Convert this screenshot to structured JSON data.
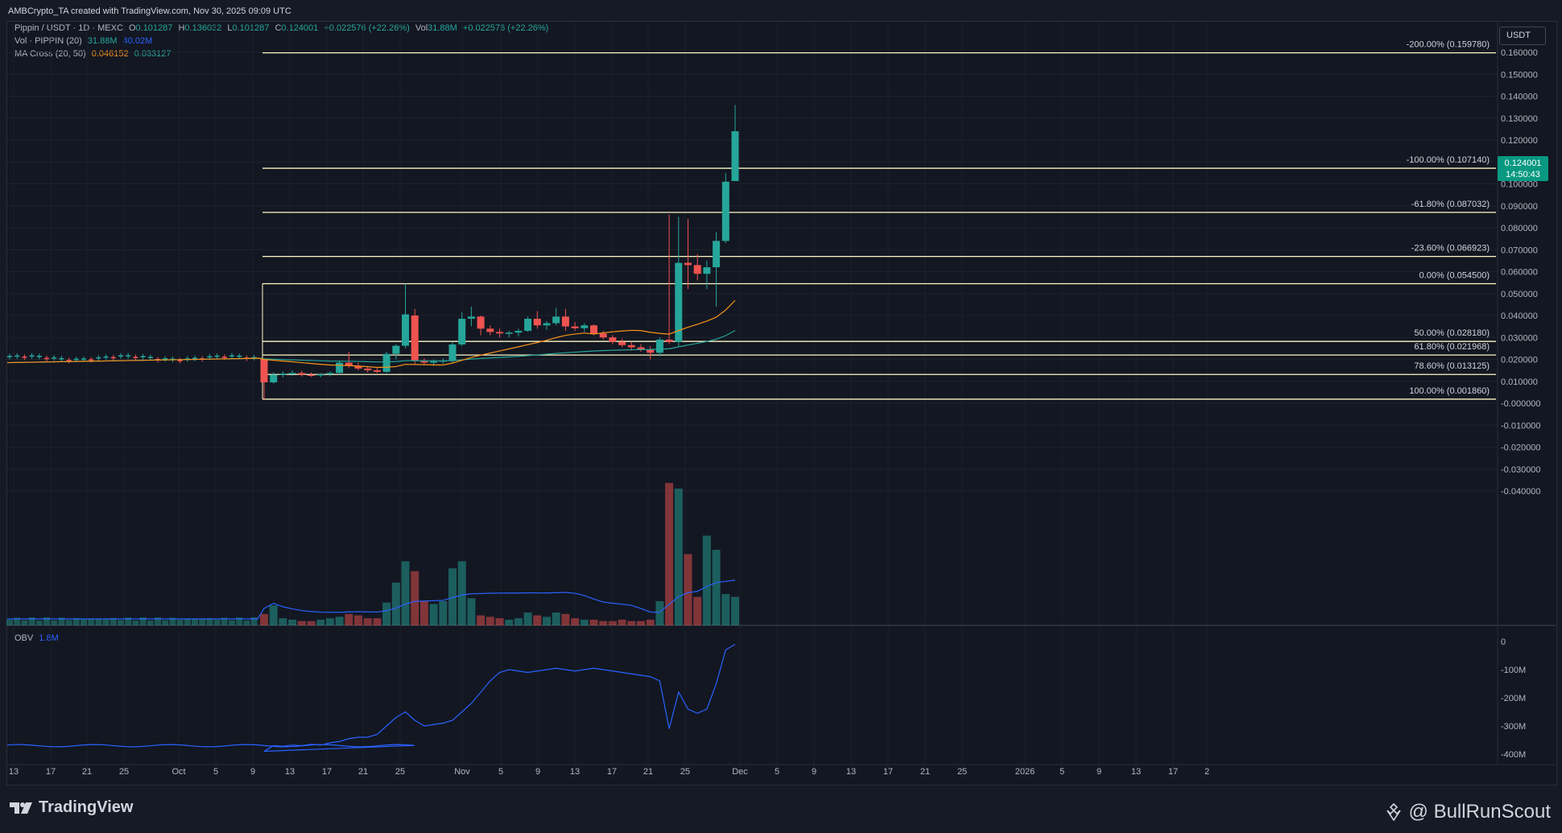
{
  "header": {
    "credit": "AMBCrypto_TA created with TradingView.com, Nov 30, 2025 09:09 UTC"
  },
  "legend": {
    "symbol": "Pippin / USDT · 1D · MEXC",
    "o_label": "O",
    "o": "0.101287",
    "h_label": "H",
    "h": "0.136032",
    "l_label": "L",
    "l": "0.101287",
    "c_label": "C",
    "c": "0.124001",
    "change": "+0.022576 (+22.26%)",
    "vol_label": "Vol",
    "vol": "31.88M",
    "vol_indicator": "Vol · PIPPIN (20)",
    "vol_value": "31.88M",
    "vol_ma": "40.02M",
    "ma_indicator": "MA Cross (20, 50)",
    "ma20": "0.046152",
    "ma50": "0.033127",
    "obv_label": "OBV",
    "obv_value": "1.8M"
  },
  "price_axis": {
    "currency": "USDT",
    "last_price": "0.124001",
    "countdown": "14:50:43"
  },
  "colors": {
    "bull": "#26a69a",
    "bear": "#ef5350",
    "ma20": "#f7931a",
    "ma50": "#26a69a",
    "obv": "#2962ff",
    "fib": "#fff9c4",
    "bg": "#131722"
  },
  "footer": {
    "brand": "TradingView",
    "handle": "@ BullRunScout"
  },
  "chart_data": [
    {
      "type": "candlestick",
      "title": "Pippin / USDT · 1D · MEXC",
      "ylim": [
        -0.045,
        0.166
      ],
      "yticks": [
        "0.160000",
        "0.150000",
        "0.140000",
        "0.130000",
        "0.120000",
        "0.110000",
        "0.100000",
        "0.090000",
        "0.080000",
        "0.070000",
        "0.060000",
        "0.050000",
        "0.040000",
        "0.030000",
        "0.020000",
        "0.010000",
        "-0.000000",
        "-0.010000",
        "-0.020000",
        "-0.030000",
        "-0.040000"
      ],
      "xticks": [
        "13",
        "17",
        "21",
        "25",
        "Oct",
        "5",
        "9",
        "13",
        "17",
        "21",
        "25",
        "Nov",
        "5",
        "9",
        "13",
        "17",
        "21",
        "25",
        "Dec",
        "5",
        "9",
        "13",
        "17",
        "21",
        "25",
        "2026",
        "5",
        "9",
        "13",
        "17",
        "2"
      ],
      "candles": [
        {
          "date": "2025-10-10",
          "o": 0.0203,
          "h": 0.0205,
          "l": 0.0018,
          "c": 0.0095
        },
        {
          "date": "2025-10-11",
          "o": 0.0095,
          "h": 0.0142,
          "l": 0.009,
          "c": 0.013
        },
        {
          "date": "2025-10-12",
          "o": 0.013,
          "h": 0.0145,
          "l": 0.0118,
          "c": 0.0135
        },
        {
          "date": "2025-10-13",
          "o": 0.0135,
          "h": 0.015,
          "l": 0.0125,
          "c": 0.0138
        },
        {
          "date": "2025-10-14",
          "o": 0.0138,
          "h": 0.0148,
          "l": 0.0122,
          "c": 0.013
        },
        {
          "date": "2025-10-15",
          "o": 0.013,
          "h": 0.014,
          "l": 0.012,
          "c": 0.0127
        },
        {
          "date": "2025-10-16",
          "o": 0.0127,
          "h": 0.0137,
          "l": 0.0118,
          "c": 0.0132
        },
        {
          "date": "2025-10-17",
          "o": 0.0132,
          "h": 0.0145,
          "l": 0.0122,
          "c": 0.0138
        },
        {
          "date": "2025-10-18",
          "o": 0.0138,
          "h": 0.0195,
          "l": 0.013,
          "c": 0.0185
        },
        {
          "date": "2025-10-19",
          "o": 0.0185,
          "h": 0.0235,
          "l": 0.016,
          "c": 0.017
        },
        {
          "date": "2025-10-20",
          "o": 0.017,
          "h": 0.0185,
          "l": 0.015,
          "c": 0.0158
        },
        {
          "date": "2025-10-21",
          "o": 0.0158,
          "h": 0.017,
          "l": 0.014,
          "c": 0.015
        },
        {
          "date": "2025-10-22",
          "o": 0.015,
          "h": 0.0162,
          "l": 0.0138,
          "c": 0.0143
        },
        {
          "date": "2025-10-23",
          "o": 0.0143,
          "h": 0.0235,
          "l": 0.0138,
          "c": 0.0225
        },
        {
          "date": "2025-10-24",
          "o": 0.0225,
          "h": 0.0268,
          "l": 0.02,
          "c": 0.0262
        },
        {
          "date": "2025-10-25",
          "o": 0.0262,
          "h": 0.0545,
          "l": 0.025,
          "c": 0.0405
        },
        {
          "date": "2025-10-26",
          "o": 0.04,
          "h": 0.043,
          "l": 0.018,
          "c": 0.0195
        },
        {
          "date": "2025-10-27",
          "o": 0.0195,
          "h": 0.0205,
          "l": 0.0175,
          "c": 0.0185
        },
        {
          "date": "2025-10-28",
          "o": 0.0185,
          "h": 0.02,
          "l": 0.017,
          "c": 0.019
        },
        {
          "date": "2025-10-29",
          "o": 0.019,
          "h": 0.0205,
          "l": 0.018,
          "c": 0.0195
        },
        {
          "date": "2025-10-30",
          "o": 0.0195,
          "h": 0.028,
          "l": 0.0185,
          "c": 0.0268
        },
        {
          "date": "2025-10-31",
          "o": 0.0268,
          "h": 0.0415,
          "l": 0.026,
          "c": 0.0385
        },
        {
          "date": "2025-11-01",
          "o": 0.0385,
          "h": 0.044,
          "l": 0.035,
          "c": 0.0395
        },
        {
          "date": "2025-11-02",
          "o": 0.0395,
          "h": 0.04,
          "l": 0.031,
          "c": 0.034
        },
        {
          "date": "2025-11-03",
          "o": 0.034,
          "h": 0.0355,
          "l": 0.031,
          "c": 0.0325
        },
        {
          "date": "2025-11-04",
          "o": 0.0325,
          "h": 0.034,
          "l": 0.03,
          "c": 0.0318
        },
        {
          "date": "2025-11-05",
          "o": 0.0318,
          "h": 0.033,
          "l": 0.03,
          "c": 0.0322
        },
        {
          "date": "2025-11-06",
          "o": 0.0322,
          "h": 0.034,
          "l": 0.0305,
          "c": 0.033
        },
        {
          "date": "2025-11-07",
          "o": 0.033,
          "h": 0.0395,
          "l": 0.0325,
          "c": 0.0385
        },
        {
          "date": "2025-11-08",
          "o": 0.0385,
          "h": 0.042,
          "l": 0.034,
          "c": 0.0355
        },
        {
          "date": "2025-11-09",
          "o": 0.0355,
          "h": 0.0375,
          "l": 0.0335,
          "c": 0.0365
        },
        {
          "date": "2025-11-10",
          "o": 0.0365,
          "h": 0.0435,
          "l": 0.0355,
          "c": 0.0395
        },
        {
          "date": "2025-11-11",
          "o": 0.0395,
          "h": 0.043,
          "l": 0.033,
          "c": 0.035
        },
        {
          "date": "2025-11-12",
          "o": 0.035,
          "h": 0.037,
          "l": 0.033,
          "c": 0.0342
        },
        {
          "date": "2025-11-13",
          "o": 0.0342,
          "h": 0.0365,
          "l": 0.0325,
          "c": 0.0355
        },
        {
          "date": "2025-11-14",
          "o": 0.0355,
          "h": 0.036,
          "l": 0.031,
          "c": 0.0318
        },
        {
          "date": "2025-11-15",
          "o": 0.0318,
          "h": 0.033,
          "l": 0.029,
          "c": 0.03
        },
        {
          "date": "2025-11-16",
          "o": 0.03,
          "h": 0.031,
          "l": 0.027,
          "c": 0.028
        },
        {
          "date": "2025-11-17",
          "o": 0.028,
          "h": 0.0295,
          "l": 0.0255,
          "c": 0.0265
        },
        {
          "date": "2025-11-18",
          "o": 0.0265,
          "h": 0.028,
          "l": 0.024,
          "c": 0.0255
        },
        {
          "date": "2025-11-19",
          "o": 0.0255,
          "h": 0.027,
          "l": 0.0235,
          "c": 0.0245
        },
        {
          "date": "2025-11-20",
          "o": 0.0245,
          "h": 0.026,
          "l": 0.02,
          "c": 0.023
        },
        {
          "date": "2025-11-21",
          "o": 0.023,
          "h": 0.03,
          "l": 0.0215,
          "c": 0.029
        },
        {
          "date": "2025-11-22",
          "o": 0.029,
          "h": 0.086,
          "l": 0.027,
          "c": 0.028
        },
        {
          "date": "2025-11-23",
          "o": 0.028,
          "h": 0.085,
          "l": 0.026,
          "c": 0.064
        },
        {
          "date": "2025-11-24",
          "o": 0.064,
          "h": 0.084,
          "l": 0.052,
          "c": 0.063
        },
        {
          "date": "2025-11-25",
          "o": 0.063,
          "h": 0.068,
          "l": 0.056,
          "c": 0.059
        },
        {
          "date": "2025-11-26",
          "o": 0.059,
          "h": 0.065,
          "l": 0.052,
          "c": 0.062
        },
        {
          "date": "2025-11-27",
          "o": 0.062,
          "h": 0.078,
          "l": 0.044,
          "c": 0.074
        },
        {
          "date": "2025-11-28",
          "o": 0.074,
          "h": 0.105,
          "l": 0.073,
          "c": 0.101
        },
        {
          "date": "2025-11-29",
          "o": 0.1013,
          "h": 0.136,
          "l": 0.1013,
          "c": 0.124
        }
      ],
      "fib_levels": [
        {
          "label": "-200.00% (0.159780)",
          "value": 0.15978
        },
        {
          "label": "-100.00% (0.107140)",
          "value": 0.10714
        },
        {
          "label": "-61.80% (0.087032)",
          "value": 0.087032
        },
        {
          "label": "-23.60% (0.066923)",
          "value": 0.066923
        },
        {
          "label": "0.00% (0.054500)",
          "value": 0.0545
        },
        {
          "label": "50.00% (0.028180)",
          "value": 0.02818
        },
        {
          "label": "61.80% (0.021968)",
          "value": 0.021968
        },
        {
          "label": "78.60% (0.013125)",
          "value": 0.013125
        },
        {
          "label": "100.00% (0.001860)",
          "value": 0.00186
        }
      ]
    },
    {
      "type": "line",
      "title": "OBV",
      "yticks": [
        "0",
        "-100M",
        "-200M",
        "-300M",
        "-400M"
      ],
      "ylim": [
        -420,
        20
      ]
    }
  ]
}
